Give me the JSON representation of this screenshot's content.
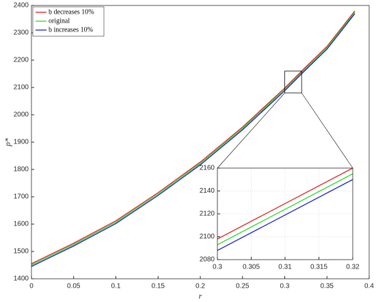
{
  "chart_data": [
    {
      "type": "line",
      "x_label": "r",
      "y_label": "p*",
      "x": [
        0,
        0.05,
        0.1,
        0.15,
        0.2,
        0.25,
        0.3,
        0.32,
        0.35,
        0.383
      ],
      "series": [
        {
          "name": "b decreases 10%",
          "color": "#e41a1c",
          "values": [
            1455,
            1530,
            1612,
            1715,
            1827,
            1955,
            2098,
            2160,
            2250,
            2380
          ]
        },
        {
          "name": "original",
          "color": "#22dd22",
          "values": [
            1450,
            1525,
            1607,
            1710,
            1822,
            1950,
            2093,
            2155,
            2245,
            2375
          ]
        },
        {
          "name": "b increases 10%",
          "color": "#1a1acc",
          "values": [
            1445,
            1520,
            1602,
            1705,
            1817,
            1945,
            2088,
            2150,
            2240,
            2370
          ]
        }
      ],
      "xlim": [
        0,
        0.4
      ],
      "xticks": [
        0,
        0.05,
        0.1,
        0.15,
        0.2,
        0.25,
        0.3,
        0.35,
        0.4
      ],
      "ylim": [
        1400,
        2400
      ],
      "yticks": [
        1400,
        1500,
        1600,
        1700,
        1800,
        1900,
        2000,
        2100,
        2200,
        2300,
        2400
      ],
      "grid": false,
      "legend": "upper left"
    },
    {
      "type": "line",
      "x": [
        0.3,
        0.32
      ],
      "series": [
        {
          "color": "#e41a1c",
          "values": [
            2098,
            2160
          ]
        },
        {
          "color": "#22dd22",
          "values": [
            2093,
            2155
          ]
        },
        {
          "color": "#1a1acc",
          "values": [
            2088,
            2150
          ]
        }
      ],
      "xlim": [
        0.3,
        0.32
      ],
      "xticks": [
        0.3,
        0.305,
        0.31,
        0.315,
        0.32
      ],
      "ylim": [
        2080,
        2160
      ],
      "yticks": [
        2080,
        2100,
        2120,
        2140,
        2160
      ],
      "grid": true
    }
  ]
}
